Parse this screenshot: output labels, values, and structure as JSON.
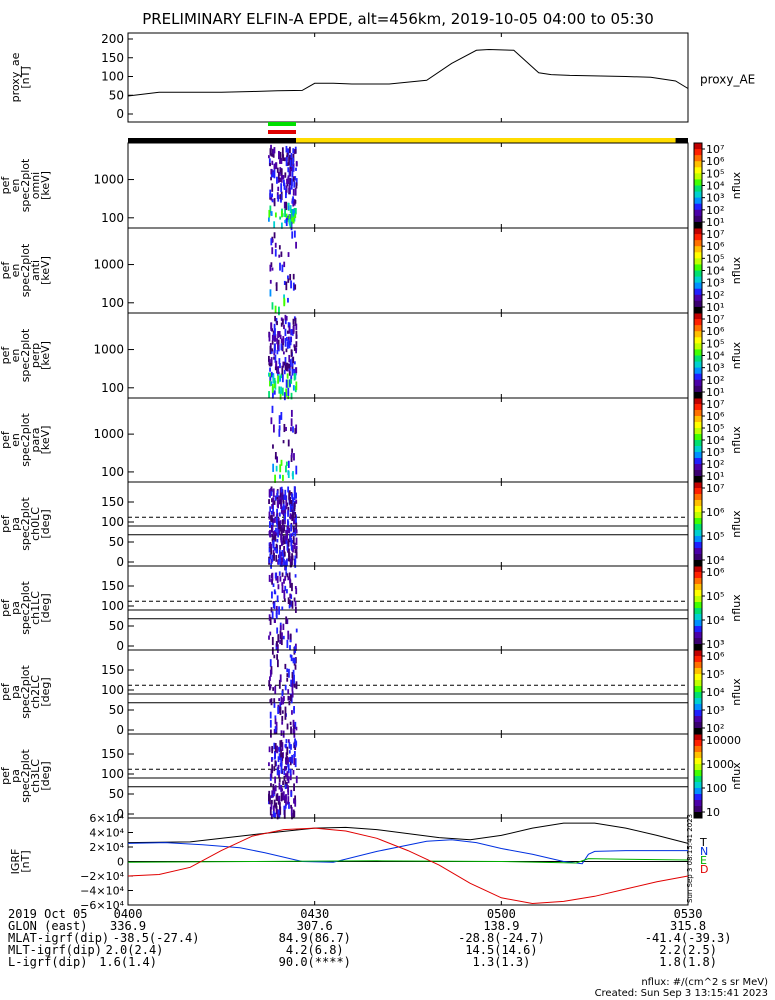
{
  "title": "PRELIMINARY ELFIN-A EPDE, alt=456km, 2019-10-05 04:00 to 05:30",
  "chart_data": [
    {
      "type": "line",
      "panel": "proxy_ae",
      "ylabel": [
        "proxy_ae",
        "[nT]"
      ],
      "ylim": [
        0,
        200
      ],
      "yticks": [
        "200",
        "150",
        "100",
        "50",
        "0"
      ],
      "legend": "proxy_AE",
      "x_minutes": [
        0,
        5,
        10,
        15,
        20,
        24,
        28,
        30,
        33,
        36,
        42,
        48,
        52,
        56,
        58,
        62,
        66,
        68,
        71,
        80,
        84,
        88,
        90
      ],
      "values": [
        48,
        58,
        58,
        58,
        60,
        62,
        63,
        82,
        82,
        80,
        80,
        90,
        135,
        170,
        172,
        170,
        110,
        105,
        103,
        100,
        98,
        88,
        68
      ]
    },
    {
      "type": "heatmap",
      "panel": "spec omni",
      "ylabel": [
        "ela",
        "pef",
        "en",
        "spec2plot",
        "omni",
        "[keV]"
      ],
      "yticks": [
        "1000",
        "100"
      ],
      "colorbar": {
        "label": "nflux",
        "ticks": [
          "10⁷",
          "10⁶",
          "10⁵",
          "10⁴",
          "10³",
          "10²",
          "10¹"
        ]
      }
    },
    {
      "type": "heatmap",
      "panel": "spec anti",
      "ylabel": [
        "ela",
        "pef",
        "en",
        "spec2plot",
        "anti",
        "[keV]"
      ],
      "yticks": [
        "1000",
        "100"
      ],
      "colorbar": {
        "label": "nflux",
        "ticks": [
          "10⁷",
          "10⁶",
          "10⁵",
          "10⁴",
          "10³",
          "10²",
          "10¹"
        ]
      }
    },
    {
      "type": "heatmap",
      "panel": "spec perp",
      "ylabel": [
        "ela",
        "pef",
        "en",
        "spec2plot",
        "perp",
        "[keV]"
      ],
      "yticks": [
        "1000",
        "100"
      ],
      "colorbar": {
        "label": "nflux",
        "ticks": [
          "10⁷",
          "10⁶",
          "10⁵",
          "10⁴",
          "10³",
          "10²",
          "10¹"
        ]
      }
    },
    {
      "type": "heatmap",
      "panel": "spec para",
      "ylabel": [
        "ela",
        "pef",
        "en",
        "spec2plot",
        "para",
        "[keV]"
      ],
      "yticks": [
        "1000",
        "100"
      ],
      "colorbar": {
        "label": "nflux",
        "ticks": [
          "10⁷",
          "10⁶",
          "10⁵",
          "10⁴",
          "10³",
          "10²",
          "10¹"
        ]
      }
    },
    {
      "type": "heatmap",
      "panel": "pa ch0LC",
      "ylabel": [
        "ela",
        "pef",
        "pa",
        "spec2plot",
        "ch0LC",
        "[deg]"
      ],
      "yticks": [
        "150",
        "100",
        "50",
        "0"
      ],
      "colorbar": {
        "label": "nflux",
        "ticks": [
          "10⁷",
          "10⁶",
          "10⁵",
          "10⁴"
        ]
      }
    },
    {
      "type": "heatmap",
      "panel": "pa ch1LC",
      "ylabel": [
        "ela",
        "pef",
        "pa",
        "spec2plot",
        "ch1LC",
        "[deg]"
      ],
      "yticks": [
        "150",
        "100",
        "50",
        "0"
      ],
      "colorbar": {
        "label": "nflux",
        "ticks": [
          "10⁶",
          "10⁵",
          "10⁴",
          "10³"
        ]
      }
    },
    {
      "type": "heatmap",
      "panel": "pa ch2LC",
      "ylabel": [
        "ela",
        "pef",
        "pa",
        "spec2plot",
        "ch2LC",
        "[deg]"
      ],
      "yticks": [
        "150",
        "100",
        "50",
        "0"
      ],
      "colorbar": {
        "label": "nflux",
        "ticks": [
          "10⁶",
          "10⁵",
          "10⁴",
          "10³",
          "10²"
        ]
      }
    },
    {
      "type": "heatmap",
      "panel": "pa ch3LC",
      "ylabel": [
        "ela",
        "pef",
        "pa",
        "spec2plot",
        "ch3LC",
        "[deg]"
      ],
      "yticks": [
        "150",
        "100",
        "50",
        "0"
      ],
      "colorbar": {
        "label": "nflux",
        "ticks": [
          "10000",
          "1000",
          "100",
          "10"
        ]
      }
    },
    {
      "type": "line",
      "panel": "IGRF",
      "ylabel": [
        "IGRF",
        "[nT]"
      ],
      "ylim": [
        -60000,
        60000
      ],
      "yticks": [
        "6×10⁴",
        "4×10⁴",
        "2×10⁴",
        "0",
        "−2×10⁴",
        "−4×10⁴",
        "−6×10⁴"
      ],
      "series": [
        {
          "name": "T",
          "color": "#000000",
          "x_minutes": [
            0,
            10,
            20,
            30,
            35,
            40,
            50,
            55,
            60,
            65,
            70,
            75,
            80,
            85,
            90
          ],
          "values": [
            26000,
            27000,
            37000,
            46000,
            47000,
            44000,
            33000,
            30000,
            36000,
            46000,
            53000,
            53000,
            46000,
            36000,
            25000
          ]
        },
        {
          "name": "N",
          "color": "#0030e0",
          "x_minutes": [
            0,
            6,
            12,
            18,
            22,
            28,
            33,
            40,
            48,
            52,
            56,
            60,
            65,
            70,
            73,
            74,
            75,
            80,
            90
          ],
          "values": [
            25000,
            26000,
            23000,
            19000,
            12000,
            0,
            -1000,
            14000,
            28000,
            30000,
            26000,
            18000,
            10000,
            0,
            -3000,
            10000,
            14000,
            15000,
            15000
          ]
        },
        {
          "name": "E",
          "color": "#00b000",
          "x_minutes": [
            0,
            20,
            40,
            60,
            72,
            74,
            80,
            90
          ],
          "values": [
            -1000,
            0,
            1000,
            0,
            -2000,
            4000,
            3000,
            2000
          ]
        },
        {
          "name": "D",
          "color": "#e00000",
          "x_minutes": [
            0,
            5,
            10,
            15,
            20,
            25,
            30,
            35,
            40,
            45,
            50,
            55,
            60,
            65,
            70,
            75,
            80,
            85,
            90
          ],
          "values": [
            -20000,
            -18000,
            -8000,
            15000,
            35000,
            44000,
            46000,
            42000,
            32000,
            15000,
            -5000,
            -30000,
            -50000,
            -58000,
            -55000,
            -48000,
            -38000,
            -28000,
            -20000
          ]
        }
      ]
    }
  ],
  "x_ticks": [
    "0400",
    "0430",
    "0500",
    "0530"
  ],
  "footer": {
    "rows": [
      {
        "label": "2019 Oct 05",
        "values": [
          "0400",
          "0430",
          "0500",
          "0530"
        ]
      },
      {
        "label": "GLON (east)",
        "values": [
          "336.9",
          "307.6",
          "138.9",
          "315.8"
        ]
      },
      {
        "label": "MLAT-igrf(dip)",
        "values": [
          "-38.5(-27.4)",
          "84.9(86.7)",
          "-28.8(-24.7)",
          "-41.4(-39.3)"
        ]
      },
      {
        "label": "MLT-igrf(dip)",
        "values": [
          "2.0(2.4)",
          "4.2(6.8)",
          "14.5(14.6)",
          "2.2(2.5)"
        ]
      },
      {
        "label": "L-igrf(dip)",
        "values": [
          "1.6(1.4)",
          "90.0(****)",
          "1.3(1.3)",
          "1.8(1.8)"
        ]
      }
    ],
    "units_note": "nflux: #/(cm^2 s sr MeV)",
    "created": "Created: Sun Sep  3 13:15:41 2023"
  },
  "side_stamp": "Sun Sep 3 08:15:41 2023",
  "colors": {
    "black_bar": "#000000",
    "yellow_bar": "#ffdc00",
    "green_marker": "#00e000",
    "red_marker": "#e00000"
  }
}
